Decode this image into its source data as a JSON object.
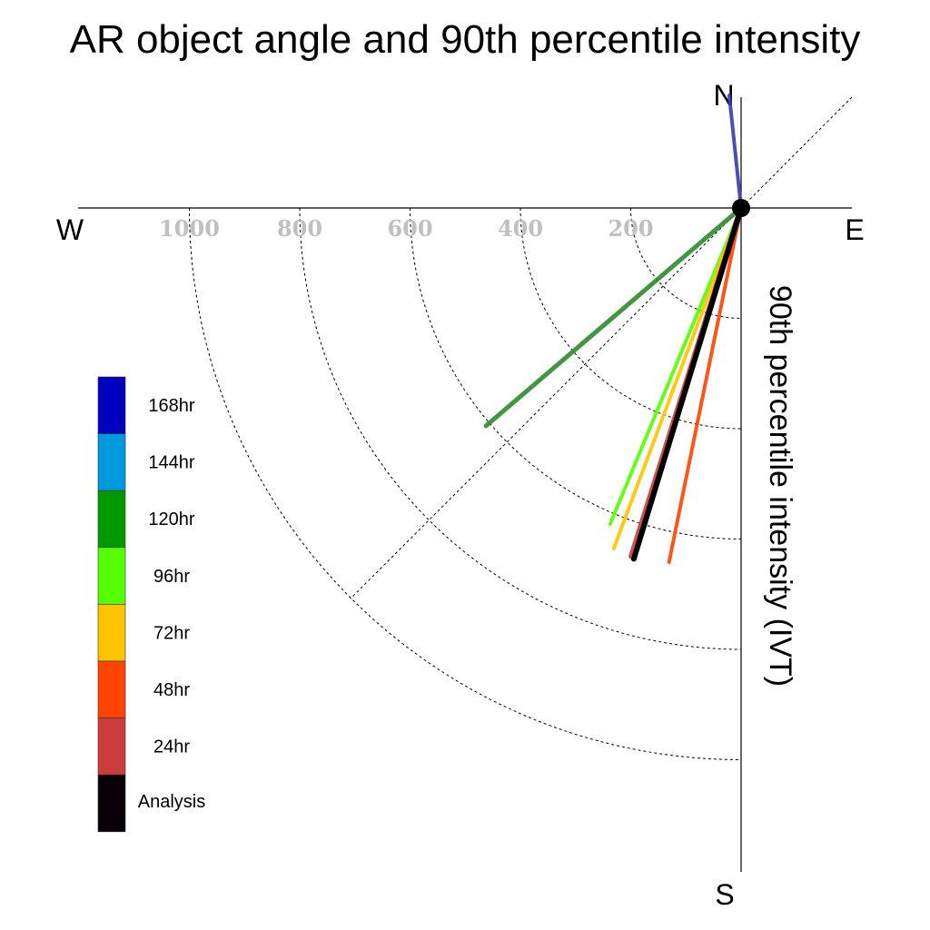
{
  "chart_data": {
    "type": "polar-vector",
    "title": "AR object angle and 90th percentile intensity",
    "radial_label": "90th percentile intensity (IVT)",
    "compass": {
      "north": "N",
      "south": "S",
      "east": "E",
      "west": "W"
    },
    "radial_ticks": [
      {
        "value": 200,
        "label": "200"
      },
      {
        "value": 400,
        "label": "400"
      },
      {
        "value": 600,
        "label": "600"
      },
      {
        "value": 800,
        "label": "800"
      },
      {
        "value": 1000,
        "label": "1000"
      }
    ],
    "radial_max": 1000,
    "series": [
      {
        "name": "168hr",
        "color": "#3a3ab0",
        "legend_color": "#0000c0",
        "angle_deg": -6,
        "intensity": 205,
        "width": 4
      },
      {
        "name": "144hr",
        "color": "#0099dd",
        "legend_color": "#0099dd",
        "angle_deg": null,
        "intensity": null,
        "width": 4
      },
      {
        "name": "120hr",
        "color": "#2e8b2e",
        "legend_color": "#009900",
        "angle_deg": 229.5,
        "intensity": 608,
        "width": 5
      },
      {
        "name": "96hr",
        "color": "#55ff00",
        "legend_color": "#55ff00",
        "angle_deg": 202.5,
        "intensity": 620,
        "width": 4
      },
      {
        "name": "72hr",
        "color": "#ffc400",
        "legend_color": "#ffc400",
        "angle_deg": 200.5,
        "intensity": 659,
        "width": 4
      },
      {
        "name": "48hr",
        "color": "#ff4400",
        "legend_color": "#ff4400",
        "angle_deg": 191.5,
        "intensity": 655,
        "width": 4
      },
      {
        "name": "24hr",
        "color": "#c83c3c",
        "legend_color": "#cc3c3c",
        "angle_deg": 197.5,
        "intensity": 662,
        "width": 6
      },
      {
        "name": "Analysis",
        "color": "#000000",
        "legend_color": "#0a0008",
        "angle_deg": 197,
        "intensity": 665,
        "width": 6
      }
    ]
  }
}
